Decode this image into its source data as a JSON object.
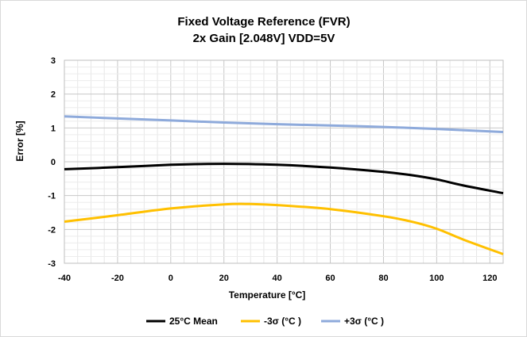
{
  "chart_data": {
    "type": "line",
    "title": [
      "Fixed Voltage Reference (FVR)",
      "2x Gain [2.048V] VDD=5V"
    ],
    "xlabel": "Temperature [°C]",
    "ylabel": "Error [%]",
    "xlim": [
      -40,
      125
    ],
    "ylim": [
      -3,
      3
    ],
    "xticks": [
      -40,
      -20,
      0,
      20,
      40,
      60,
      80,
      100,
      120
    ],
    "yticks": [
      -3,
      -2,
      -1,
      0,
      1,
      2,
      3
    ],
    "grid": true,
    "legend_position": "bottom",
    "series": [
      {
        "name": "25°C Mean",
        "color": "#000000",
        "x": [
          -40,
          -20,
          0,
          20,
          40,
          60,
          80,
          90,
          100,
          110,
          125
        ],
        "y": [
          -0.22,
          -0.16,
          -0.09,
          -0.06,
          -0.09,
          -0.17,
          -0.3,
          -0.39,
          -0.52,
          -0.7,
          -0.93
        ]
      },
      {
        "name": "-3σ (°C )",
        "color": "#ffc000",
        "x": [
          -40,
          -20,
          0,
          20,
          30,
          40,
          60,
          80,
          90,
          100,
          110,
          125
        ],
        "y": [
          -1.77,
          -1.58,
          -1.38,
          -1.26,
          -1.25,
          -1.28,
          -1.4,
          -1.61,
          -1.76,
          -1.98,
          -2.3,
          -2.73
        ]
      },
      {
        "name": "+3σ (°C )",
        "color": "#8eaadb",
        "x": [
          -40,
          -20,
          0,
          20,
          40,
          60,
          80,
          100,
          125
        ],
        "y": [
          1.34,
          1.28,
          1.22,
          1.16,
          1.11,
          1.07,
          1.03,
          0.97,
          0.88
        ]
      }
    ]
  }
}
